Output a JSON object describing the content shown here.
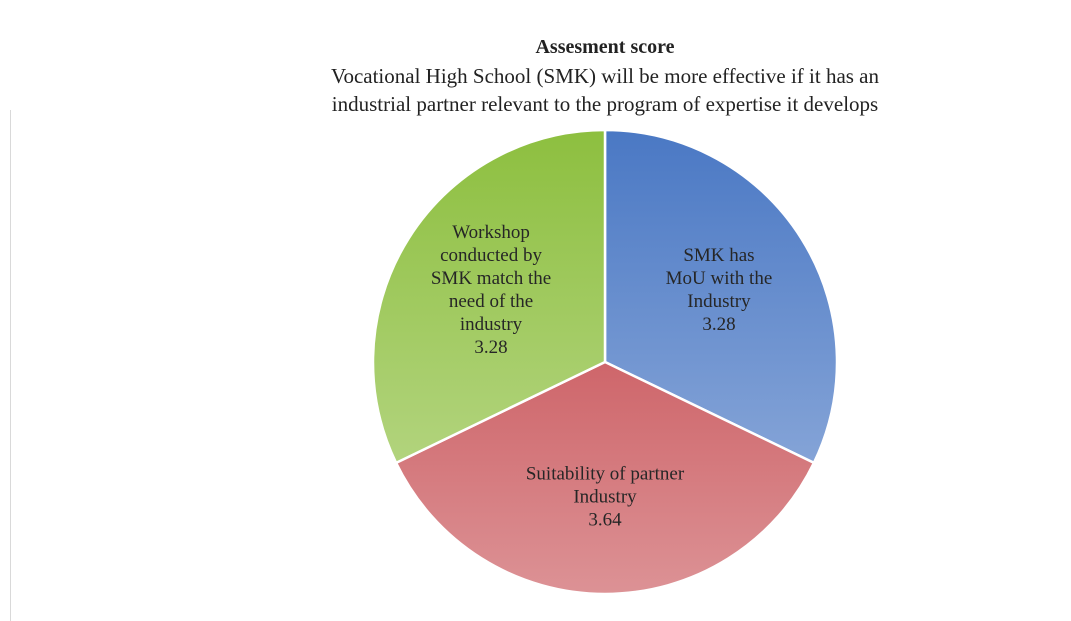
{
  "chart_data": {
    "type": "pie",
    "title": "Assesment score",
    "subtitle": [
      "Vocational High School (SMK) will be more effective if it has an",
      "industrial partner relevant to the program of expertise it develops"
    ],
    "categories": [
      "SMK has MoU with the Industry",
      "Suitability of partner Industry",
      "Workshop conducted by SMK match the need of the industry"
    ],
    "values": [
      3.28,
      3.64,
      3.28
    ],
    "colors": [
      "#4a78c4",
      "#c0393f",
      "#8dbf3f"
    ]
  }
}
